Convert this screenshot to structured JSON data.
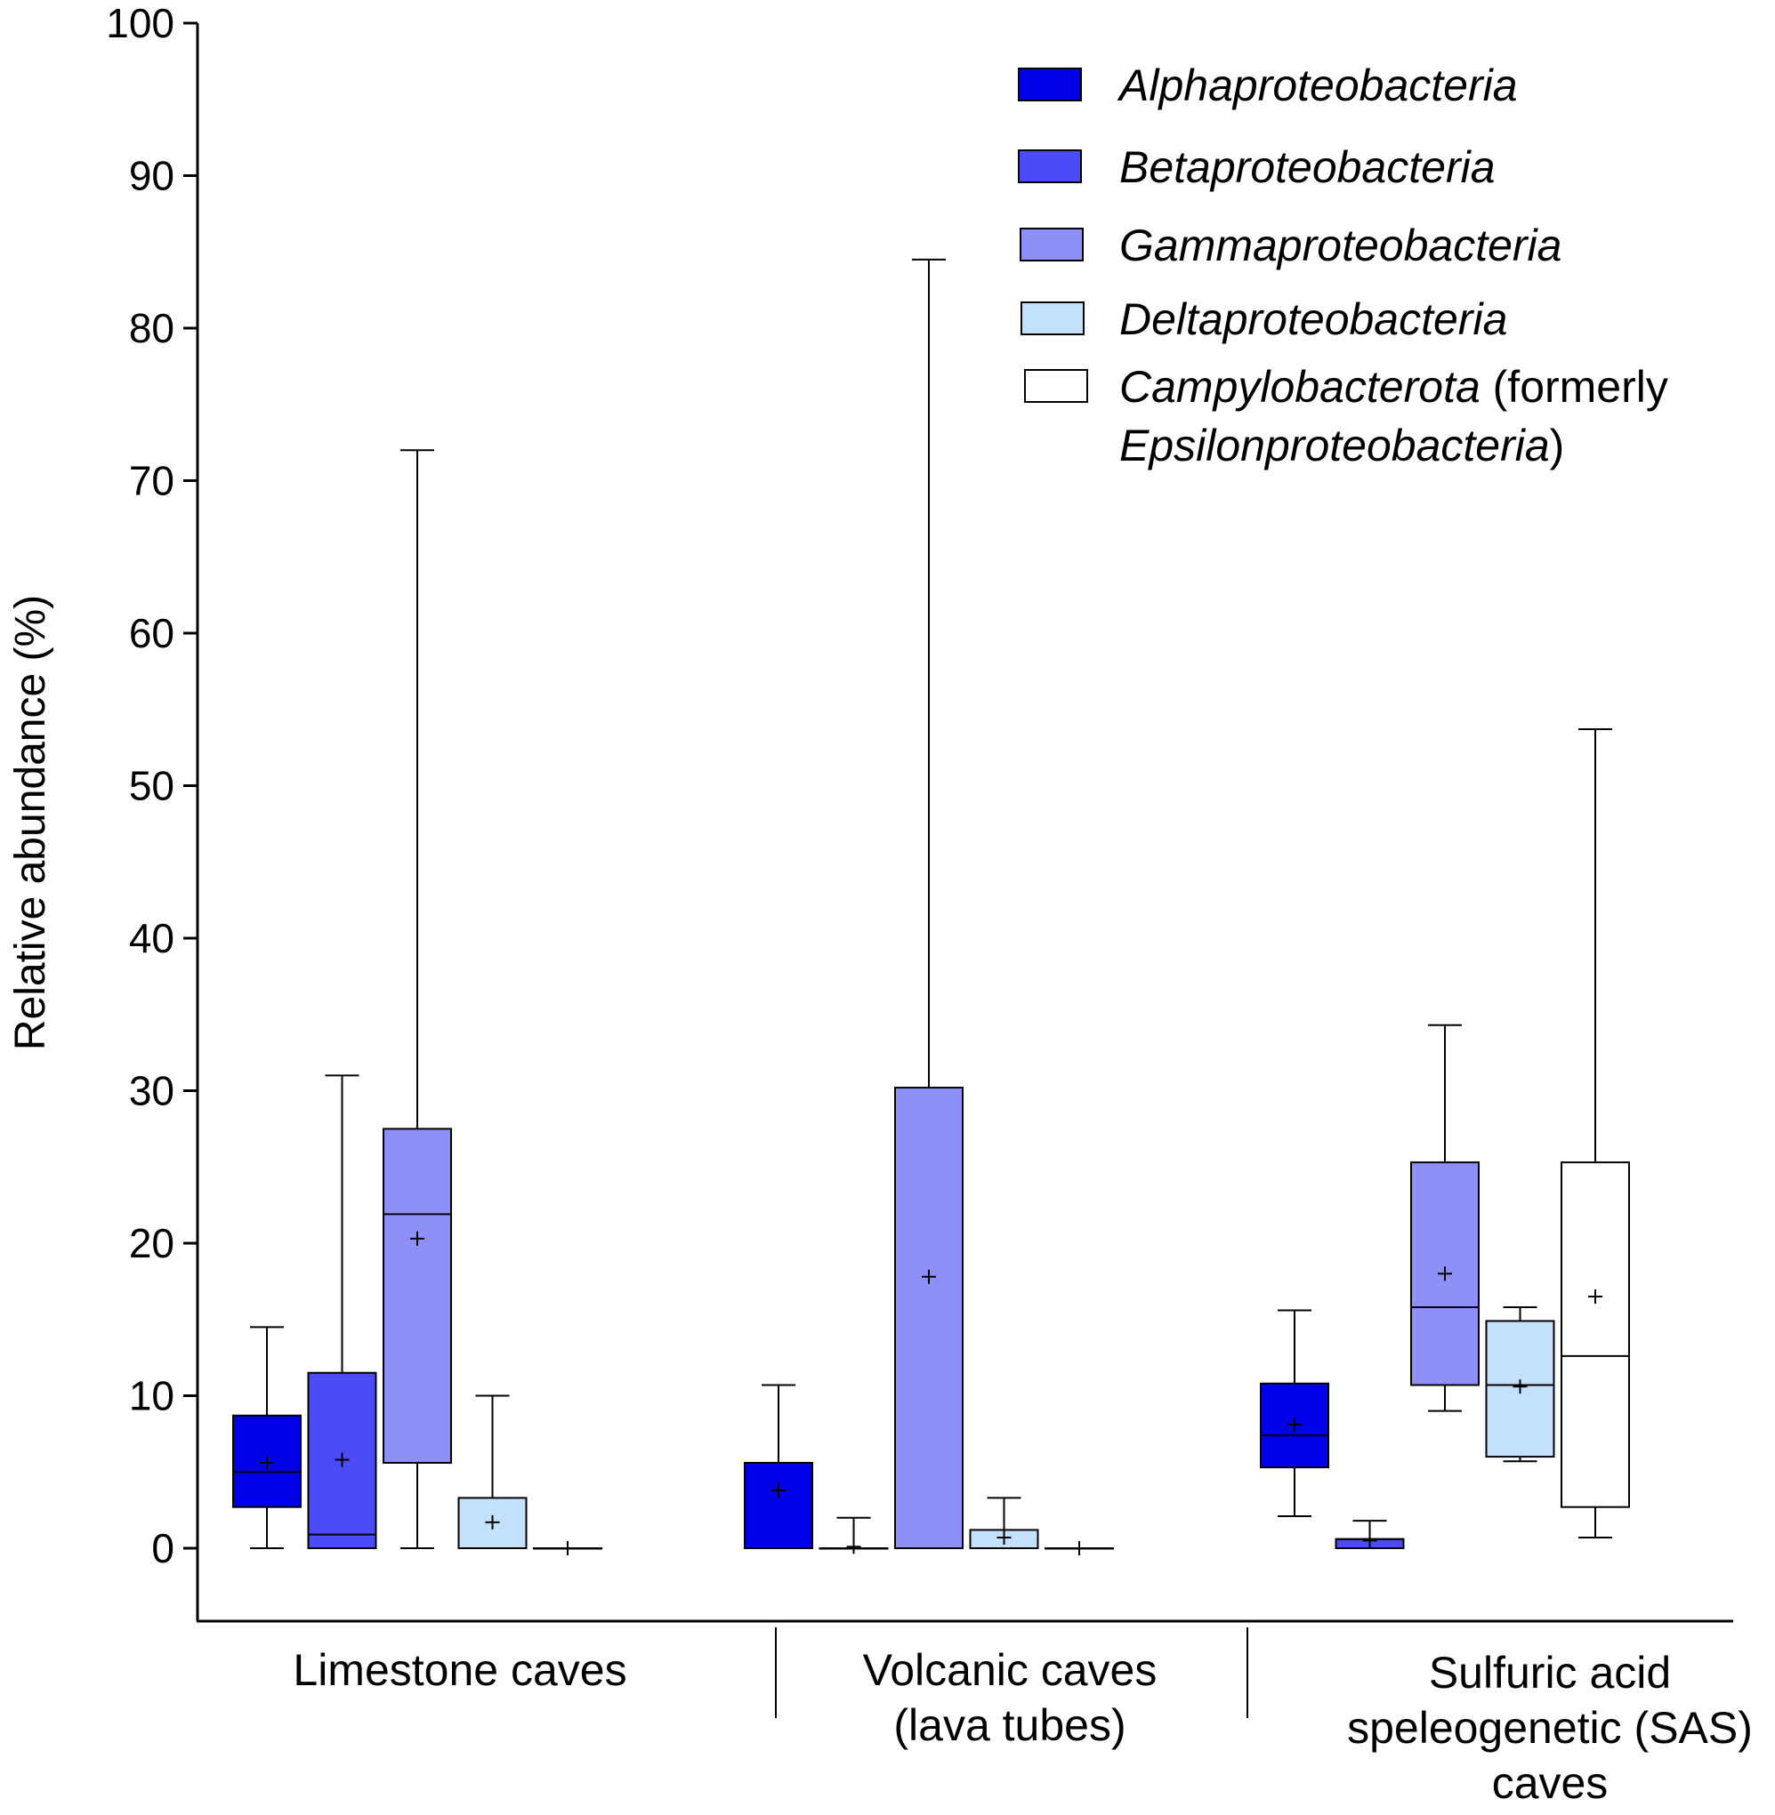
{
  "chart_data": {
    "type": "box",
    "ylabel": "Relative abundance (%)",
    "ylim": [
      -5,
      100
    ],
    "yticks": [
      0,
      10,
      20,
      30,
      40,
      50,
      60,
      70,
      80,
      90,
      100
    ],
    "ytick_labels": [
      "0",
      "10",
      "20",
      "30",
      "40",
      "50",
      "60",
      "70",
      "80",
      "90",
      "100"
    ],
    "groups": [
      {
        "lines": [
          "Limestone caves"
        ]
      },
      {
        "lines": [
          "Volcanic caves",
          "(lava tubes)"
        ]
      },
      {
        "lines": [
          "Sulfuric acid",
          "speleogenetic (SAS)",
          "caves"
        ]
      }
    ],
    "series": [
      {
        "name": "Alphaproteobacteria",
        "color": "#0000e6",
        "legend_lines": [
          [
            {
              "text": "Alphaproteobacteria",
              "italic": true
            }
          ]
        ]
      },
      {
        "name": "Betaproteobacteria",
        "color": "#4b4bf7",
        "legend_lines": [
          [
            {
              "text": "Betaproteobacteria",
              "italic": true
            }
          ]
        ]
      },
      {
        "name": "Gammaproteobacteria",
        "color": "#8f8ff8",
        "legend_lines": [
          [
            {
              "text": "Gammaproteobacteria",
              "italic": true
            }
          ]
        ]
      },
      {
        "name": "Deltaproteobacteria",
        "color": "#c3e1fa",
        "legend_lines": [
          [
            {
              "text": "Deltaproteobacteria",
              "italic": true
            }
          ]
        ]
      },
      {
        "name": "Campylobacterota (formerly Epsilonproteobacteria)",
        "color": "#ffffff",
        "legend_lines": [
          [
            {
              "text": "Campylobacterota",
              "italic": true
            },
            {
              "text": " (formerly",
              "italic": false
            }
          ],
          [
            {
              "text": "Epsilonproteobacteria",
              "italic": true
            },
            {
              "text": ")",
              "italic": false
            }
          ]
        ]
      }
    ],
    "boxes": [
      [
        {
          "min": 0,
          "q1": 2.7,
          "median": 5.0,
          "q3": 8.7,
          "max": 14.5,
          "mean": 5.6
        },
        {
          "min": 0,
          "q1": 0,
          "median": 0.9,
          "q3": 11.5,
          "max": 31.0,
          "mean": 5.8
        },
        {
          "min": 0,
          "q1": 5.6,
          "median": 21.9,
          "q3": 27.5,
          "max": 72.0,
          "mean": 20.3
        },
        {
          "min": 0,
          "q1": 0,
          "median": 0,
          "q3": 3.3,
          "max": 10.0,
          "mean": 1.7
        },
        {
          "min": 0,
          "q1": 0,
          "median": 0,
          "q3": 0,
          "max": 0,
          "mean": 0
        }
      ],
      [
        {
          "min": 0,
          "q1": 0,
          "median": 0,
          "q3": 5.6,
          "max": 10.7,
          "mean": 3.8
        },
        {
          "min": 0,
          "q1": 0,
          "median": 0,
          "q3": 0,
          "max": 2.0,
          "mean": 0.1
        },
        {
          "min": 0,
          "q1": 0,
          "median": 0,
          "q3": 30.2,
          "max": 84.5,
          "mean": 17.8
        },
        {
          "min": 0,
          "q1": 0,
          "median": 0,
          "q3": 1.2,
          "max": 3.3,
          "mean": 0.7
        },
        {
          "min": 0,
          "q1": 0,
          "median": 0,
          "q3": 0,
          "max": 0,
          "mean": 0
        }
      ],
      [
        {
          "min": 2.1,
          "q1": 5.3,
          "median": 7.4,
          "q3": 10.8,
          "max": 15.6,
          "mean": 8.1
        },
        {
          "min": 0,
          "q1": 0,
          "median": 0.6,
          "q3": 0.6,
          "max": 1.8,
          "mean": 0.5
        },
        {
          "min": 9.0,
          "q1": 10.7,
          "median": 15.8,
          "q3": 25.3,
          "max": 34.3,
          "mean": 18.0
        },
        {
          "min": 5.7,
          "q1": 6.0,
          "median": 10.7,
          "q3": 14.9,
          "max": 15.8,
          "mean": 10.6
        },
        {
          "min": 0.7,
          "q1": 2.7,
          "median": 12.6,
          "q3": 25.3,
          "max": 53.7,
          "mean": 16.5
        }
      ]
    ]
  }
}
